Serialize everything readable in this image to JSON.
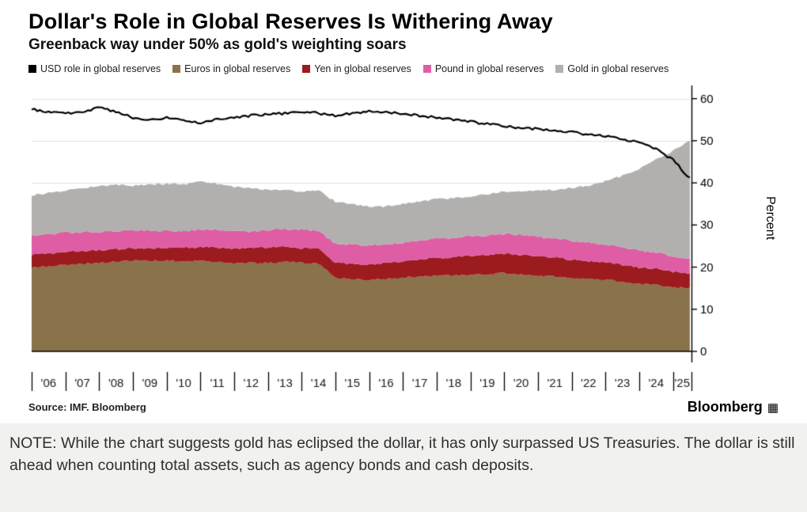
{
  "header": {
    "title": "Dollar's Role in Global Reserves Is Withering Away",
    "subtitle": "Greenback way under 50% as gold's weighting soars"
  },
  "footer": {
    "source": "Source: IMF. Bloomberg",
    "brand": "Bloomberg",
    "brand_mark": "▦"
  },
  "note": "NOTE: While the chart suggests gold has eclipsed the dollar, it has only surpassed US Treasuries. The dollar is still ahead when counting total assets, such as agency bonds and cash deposits.",
  "chart_data": {
    "type": "area",
    "stacked": true,
    "ylabel": "Percent",
    "ylim": [
      0,
      62
    ],
    "y_ticks": [
      0,
      10,
      20,
      30,
      40,
      50,
      60
    ],
    "grid": "horizontal-faint",
    "legend_position": "top",
    "x_tick_labels": [
      "'06",
      "'07",
      "'08",
      "'09",
      "'10",
      "'11",
      "'12",
      "'13",
      "'14",
      "'15",
      "'16",
      "'17",
      "'18",
      "'19",
      "'20",
      "'21",
      "'22",
      "'23",
      "'24",
      "'25"
    ],
    "x": [
      2006,
      2006.5,
      2007,
      2007.5,
      2008,
      2008.5,
      2009,
      2009.5,
      2010,
      2010.5,
      2011,
      2011.5,
      2012,
      2012.5,
      2013,
      2013.5,
      2014,
      2014.5,
      2015,
      2015.5,
      2016,
      2016.5,
      2017,
      2017.5,
      2018,
      2018.5,
      2019,
      2019.5,
      2020,
      2020.5,
      2021,
      2021.5,
      2022,
      2022.5,
      2023,
      2023.5,
      2024,
      2024.5,
      2025,
      2025.5
    ],
    "series": [
      {
        "name": "USD role in global reserves",
        "type": "line",
        "color": "#000000",
        "values": [
          57.5,
          56.8,
          56.5,
          57.0,
          57.8,
          57.0,
          55.5,
          55.0,
          55.5,
          55.0,
          54.3,
          55.0,
          55.5,
          56.0,
          56.3,
          56.5,
          57.0,
          56.5,
          56.0,
          56.5,
          57.0,
          56.8,
          56.5,
          56.0,
          55.5,
          55.0,
          54.5,
          54.0,
          53.5,
          53.0,
          52.8,
          52.5,
          52.0,
          51.5,
          51.0,
          50.5,
          49.5,
          48.0,
          45.5,
          41.0
        ]
      },
      {
        "name": "Euros in global reserves",
        "type": "area",
        "color": "#8a724a",
        "values": [
          20.0,
          20.2,
          20.5,
          20.8,
          21.0,
          21.2,
          21.5,
          21.5,
          21.5,
          21.4,
          21.5,
          21.3,
          21.0,
          21.0,
          21.0,
          21.2,
          21.0,
          20.8,
          17.5,
          17.2,
          17.0,
          17.2,
          17.5,
          17.8,
          18.0,
          18.0,
          18.2,
          18.3,
          18.5,
          18.3,
          18.0,
          17.8,
          17.5,
          17.2,
          17.0,
          16.5,
          16.0,
          15.8,
          15.3,
          15.0
        ]
      },
      {
        "name": "Yen in global reserves",
        "type": "area",
        "color": "#9c1b1e",
        "values": [
          3.0,
          3.0,
          3.0,
          3.0,
          3.0,
          3.1,
          3.0,
          3.0,
          3.1,
          3.2,
          3.3,
          3.4,
          3.5,
          3.5,
          3.6,
          3.6,
          3.5,
          3.5,
          3.5,
          3.6,
          3.6,
          3.7,
          3.8,
          4.0,
          4.2,
          4.4,
          4.5,
          4.6,
          4.7,
          4.6,
          4.5,
          4.4,
          4.3,
          4.2,
          4.1,
          4.0,
          3.9,
          3.8,
          3.6,
          3.5
        ]
      },
      {
        "name": "Pound in global reserves",
        "type": "area",
        "color": "#df5da5",
        "values": [
          4.5,
          4.6,
          4.7,
          4.5,
          4.4,
          4.3,
          4.3,
          4.2,
          4.0,
          4.0,
          4.1,
          4.1,
          4.0,
          4.0,
          4.2,
          4.3,
          4.4,
          4.4,
          4.5,
          4.6,
          4.5,
          4.5,
          4.5,
          4.5,
          4.5,
          4.6,
          4.6,
          4.6,
          4.7,
          4.7,
          4.7,
          4.6,
          4.5,
          4.4,
          4.3,
          4.2,
          4.0,
          3.9,
          3.7,
          3.5
        ]
      },
      {
        "name": "Gold in global reserves",
        "type": "area",
        "color": "#b1b0ae",
        "values": [
          9.5,
          9.8,
          10.0,
          10.5,
          10.8,
          11.0,
          10.5,
          11.0,
          11.2,
          11.0,
          11.5,
          11.0,
          10.5,
          10.2,
          9.5,
          9.2,
          9.0,
          9.5,
          10.0,
          9.5,
          9.3,
          9.0,
          9.2,
          9.3,
          9.5,
          9.3,
          9.5,
          9.8,
          10.0,
          10.5,
          11.0,
          11.5,
          12.5,
          13.5,
          15.0,
          17.0,
          19.5,
          22.0,
          25.0,
          28.0
        ]
      }
    ]
  }
}
